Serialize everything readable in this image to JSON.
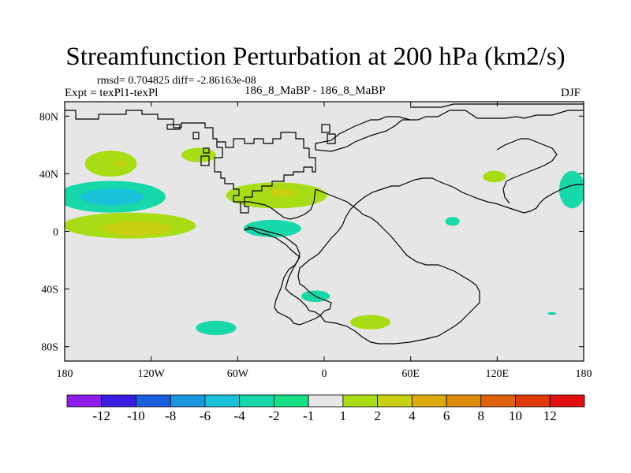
{
  "title": "Streamfunction Perturbation at 200 hPa (km2/s)",
  "stats": "rmsd= 0.704825 diff= -2.86163e-08",
  "experiment": "Expt = texPl1-texPl",
  "case": "186_8_MaBP - 186_8_MaBP",
  "season": "DJF",
  "chart_data": {
    "type": "heatmap",
    "variable": "streamfunction perturbation",
    "units": "km2/s",
    "level": "200 hPa",
    "xlim": [
      -180,
      180
    ],
    "ylim": [
      -90,
      90
    ],
    "x_ticks": [
      {
        "value": -180,
        "label": "180"
      },
      {
        "value": -120,
        "label": "120W"
      },
      {
        "value": -60,
        "label": "60W"
      },
      {
        "value": 0,
        "label": "0"
      },
      {
        "value": 60,
        "label": "60E"
      },
      {
        "value": 120,
        "label": "120E"
      },
      {
        "value": 180,
        "label": "180"
      }
    ],
    "y_ticks": [
      {
        "value": 80,
        "label": "80N"
      },
      {
        "value": 40,
        "label": "40N"
      },
      {
        "value": 0,
        "label": "0"
      },
      {
        "value": -40,
        "label": "40S"
      },
      {
        "value": -80,
        "label": "80S"
      }
    ],
    "background_color": "#e6e6e6",
    "colorbar": {
      "colors": [
        "#8c1ce6",
        "#3a1ee0",
        "#1a5fe0",
        "#1a97dd",
        "#19c2d8",
        "#17d8a8",
        "#15e086",
        "#e6e6e6",
        "#a8dc14",
        "#c8d012",
        "#dcaa0c",
        "#e08a0a",
        "#e0620a",
        "#e03a0a",
        "#e01010"
      ],
      "labels": [
        "-12",
        "-10",
        "-8",
        "-6",
        "-4",
        "-2",
        "-1",
        "1",
        "2",
        "4",
        "6",
        "8",
        "10",
        "12"
      ]
    },
    "anomaly_regions": [
      {
        "lon": -148,
        "lat": 47,
        "rlon": 18,
        "rlat": 9,
        "level": "2",
        "color": "#a8dc14"
      },
      {
        "lon": -141,
        "lat": 47,
        "rlon": 5,
        "rlat": 2,
        "level": "4",
        "color": "#c8d012"
      },
      {
        "lon": -87,
        "lat": 53,
        "rlon": 12,
        "rlat": 5,
        "level": "2",
        "color": "#a8dc14"
      },
      {
        "lon": -148,
        "lat": 24,
        "rlon": 38,
        "rlat": 11,
        "level": "-2",
        "color": "#17d8a8"
      },
      {
        "lon": -147,
        "lat": 24,
        "rlon": 22,
        "rlat": 6,
        "level": "-4",
        "color": "#19c2d8"
      },
      {
        "lon": -135,
        "lat": 4,
        "rlon": 46,
        "rlat": 9,
        "level": "2",
        "color": "#a8dc14"
      },
      {
        "lon": -130,
        "lat": 2,
        "rlon": 24,
        "rlat": 5,
        "level": "4",
        "color": "#c8d012"
      },
      {
        "lon": -33,
        "lat": 25,
        "rlon": 35,
        "rlat": 9,
        "level": "2",
        "color": "#a8dc14"
      },
      {
        "lon": -29,
        "lat": 27,
        "rlon": 9,
        "rlat": 3,
        "level": "4",
        "color": "#c8d012"
      },
      {
        "lon": -36,
        "lat": 2,
        "rlon": 20,
        "rlat": 6,
        "level": "-2",
        "color": "#17d8a8"
      },
      {
        "lon": 118,
        "lat": 38,
        "rlon": 8,
        "rlat": 4,
        "level": "2",
        "color": "#a8dc14"
      },
      {
        "lon": 172,
        "lat": 29,
        "rlon": 9,
        "rlat": 13,
        "level": "-2",
        "color": "#17d8a8"
      },
      {
        "lon": 89,
        "lat": 7,
        "rlon": 5,
        "rlat": 3,
        "level": "-2",
        "color": "#17d8a8"
      },
      {
        "lon": -6,
        "lat": -45,
        "rlon": 10,
        "rlat": 4,
        "level": "-2",
        "color": "#17d8a8"
      },
      {
        "lon": 32,
        "lat": -63,
        "rlon": 14,
        "rlat": 5,
        "level": "2",
        "color": "#a8dc14"
      },
      {
        "lon": -75,
        "lat": -67,
        "rlon": 14,
        "rlat": 5,
        "level": "-2",
        "color": "#17d8a8"
      },
      {
        "lon": 158,
        "lat": -57,
        "rlon": 3,
        "rlat": 1,
        "level": "-2",
        "color": "#17d8a8"
      }
    ]
  }
}
